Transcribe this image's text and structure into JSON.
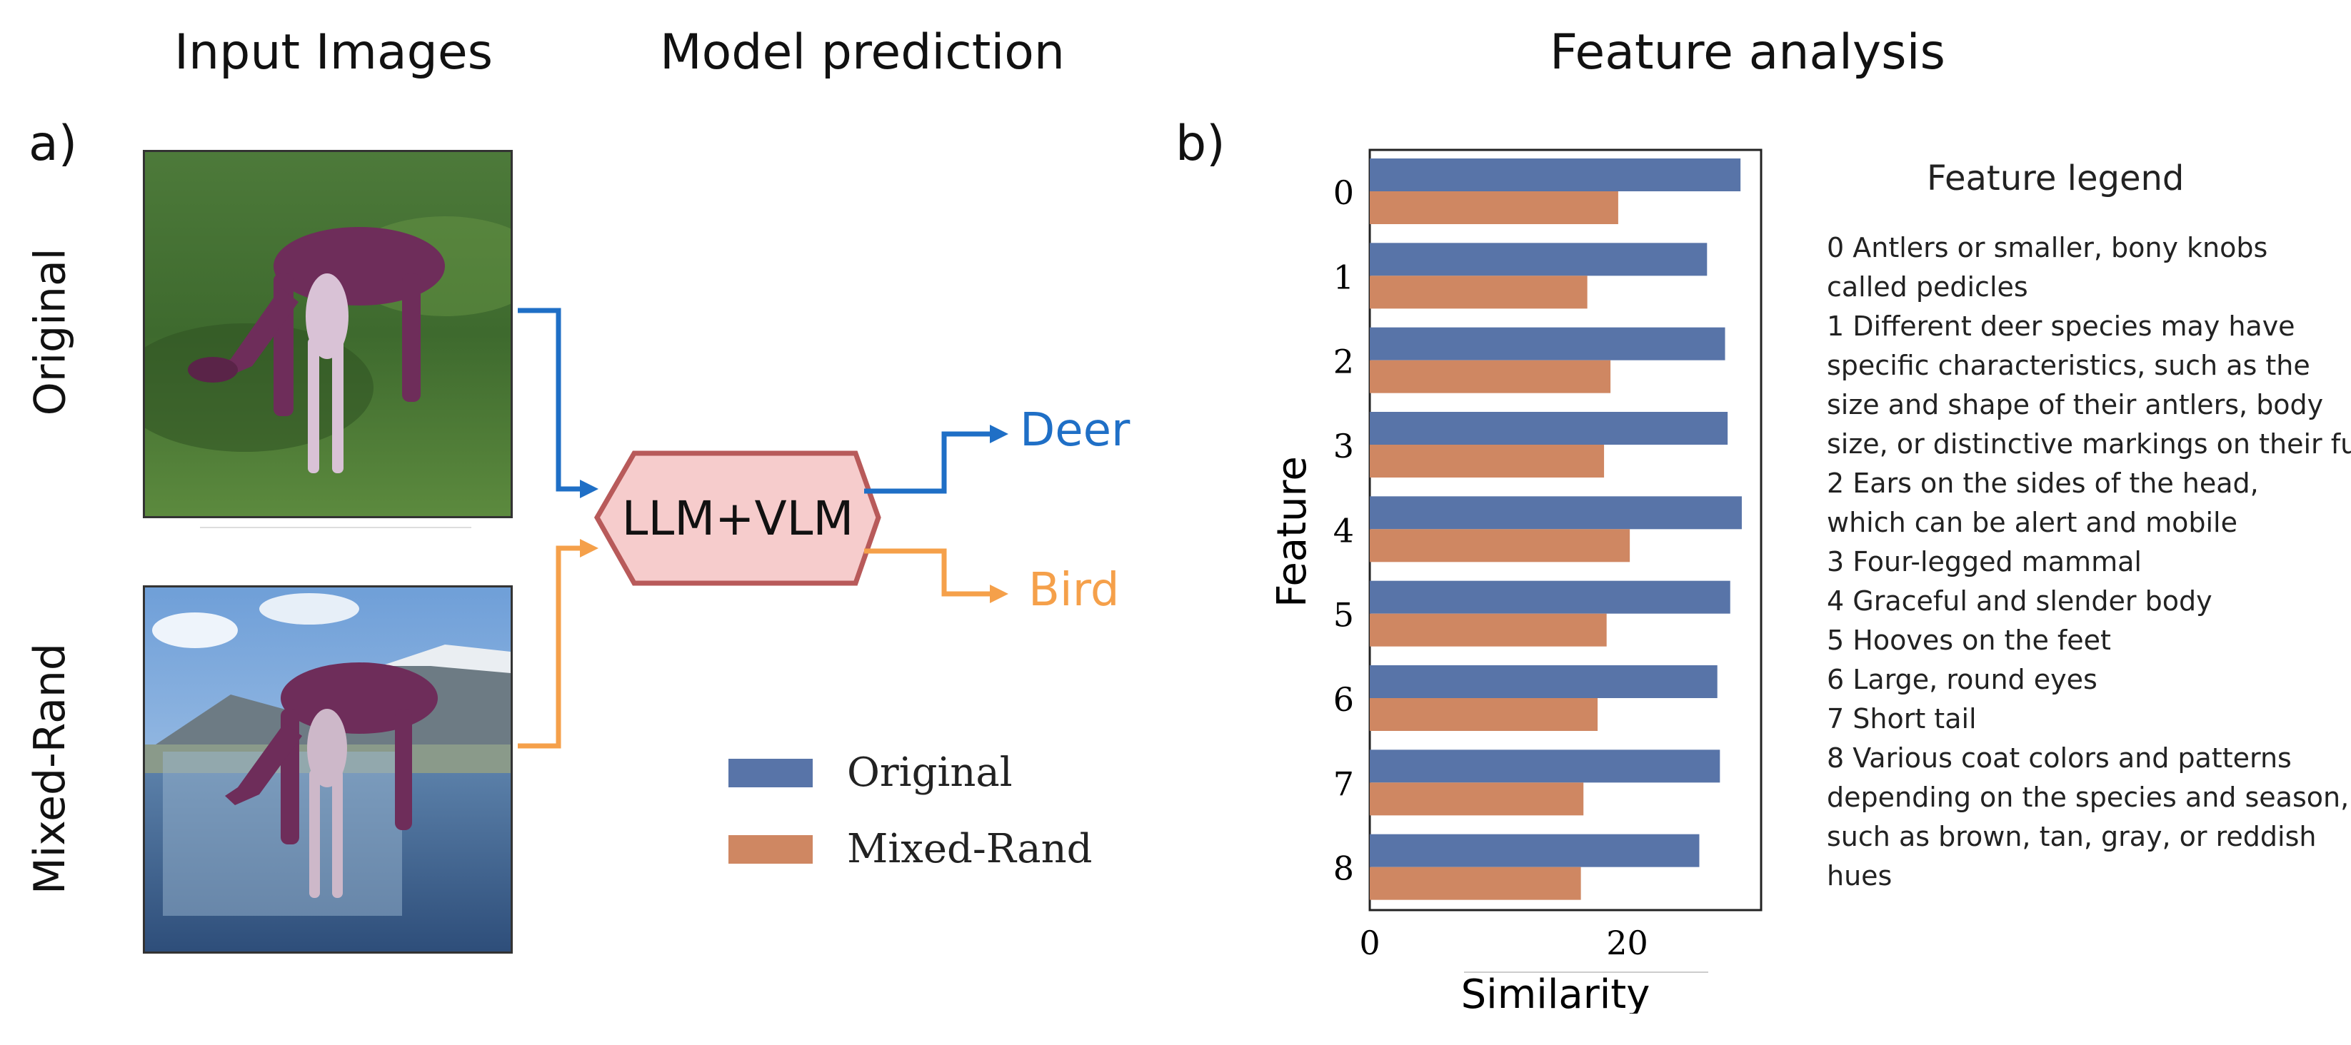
{
  "headers": {
    "input_images": "Input Images",
    "model_prediction": "Model prediction",
    "feature_analysis": "Feature analysis"
  },
  "panel_a": {
    "letter": "a)",
    "row_labels": [
      "Original",
      "Mixed-Rand"
    ],
    "model_box": "LLM+VLM",
    "predictions": [
      {
        "label": "Deer",
        "color": "#1f6fc6"
      },
      {
        "label": "Bird",
        "color": "#f5a04a"
      }
    ],
    "arrow_colors": {
      "original": "#1f6fc6",
      "mixed": "#f5a04a"
    },
    "box_colors": {
      "fill": "#f6cccc",
      "stroke": "#b85a5a"
    },
    "legend": [
      {
        "label": "Original",
        "color": "#5874a8"
      },
      {
        "label": "Mixed-Rand",
        "color": "#cf8762"
      }
    ]
  },
  "panel_b": {
    "letter": "b)",
    "legend_title": "Feature legend",
    "legend_lines": [
      "0 Antlers or smaller, bony knobs",
      "called pedicles",
      "1 Different deer species may have",
      "specific characteristics, such as the",
      "size and shape of their antlers, body",
      "size, or distinctive markings on their fur.",
      "2 Ears on the sides of the head,",
      "which can be alert and mobile",
      "3 Four-legged mammal",
      "4 Graceful and slender body",
      "5 Hooves on the feet",
      "6 Large, round eyes",
      "7 Short tail",
      "8 Various coat colors and patterns",
      "depending on the species and season,",
      "such as brown, tan, gray, or reddish",
      "hues"
    ]
  },
  "chart_data": {
    "type": "bar",
    "orientation": "horizontal",
    "categories": [
      "0",
      "1",
      "2",
      "3",
      "4",
      "5",
      "6",
      "7",
      "8"
    ],
    "series": [
      {
        "name": "Original",
        "color": "#5874a8",
        "values": [
          28.8,
          26.2,
          27.6,
          27.8,
          28.9,
          28.0,
          27.0,
          27.2,
          25.6
        ]
      },
      {
        "name": "Mixed-Rand",
        "color": "#cf8762",
        "values": [
          19.3,
          16.9,
          18.7,
          18.2,
          20.2,
          18.4,
          17.7,
          16.6,
          16.4
        ]
      }
    ],
    "xlabel": "Similarity",
    "ylabel": "Feature",
    "xticks": [
      0,
      20
    ],
    "xlim": [
      0,
      30.4
    ],
    "grid": false
  }
}
